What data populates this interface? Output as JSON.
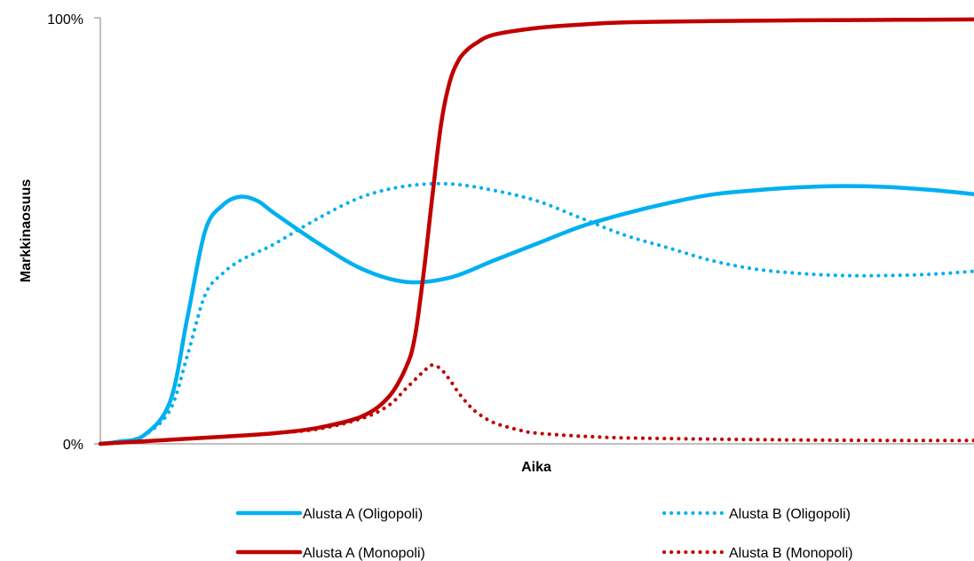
{
  "chart_data": {
    "type": "line",
    "title": "",
    "xlabel": "Aika",
    "ylabel": "Markkinaosuus",
    "ylim": [
      0,
      100
    ],
    "y_ticks": [
      "0%",
      "100%"
    ],
    "grid": false,
    "legend_placement": "bottom",
    "series": [
      {
        "name": "Alusta A (Oligopoli)",
        "color": "#00B0F0",
        "style": "solid",
        "x": [
          0,
          2,
          5,
          8,
          10,
          12,
          14,
          16,
          18,
          20,
          25,
          30,
          35,
          40,
          45,
          50,
          55,
          60,
          65,
          70,
          75,
          80,
          85,
          90,
          95,
          100
        ],
        "values": [
          0,
          0.5,
          2,
          10,
          30,
          50,
          56,
          58,
          57,
          54,
          47,
          41,
          38,
          39,
          43,
          47,
          51,
          54,
          56.5,
          58.5,
          59.5,
          60.2,
          60.5,
          60.3,
          59.6,
          58.6
        ]
      },
      {
        "name": "Alusta B (Oligopoli)",
        "color": "#00B0F0",
        "style": "dotted",
        "x": [
          0,
          2,
          5,
          8,
          10,
          12,
          14,
          16,
          18,
          20,
          25,
          30,
          35,
          40,
          45,
          50,
          55,
          60,
          65,
          70,
          75,
          80,
          85,
          90,
          95,
          100
        ],
        "values": [
          0,
          0.5,
          2,
          8,
          21,
          35,
          40,
          43,
          45,
          47,
          53,
          58,
          60.5,
          61,
          59.5,
          57,
          53,
          49,
          46,
          43,
          41,
          40,
          39.5,
          39.5,
          39.8,
          40.5
        ]
      },
      {
        "name": "Alusta A (Monopoli)",
        "color": "#C00000",
        "style": "solid",
        "x": [
          0,
          5,
          10,
          15,
          20,
          25,
          30,
          33,
          35,
          36,
          37,
          38,
          39,
          40,
          41,
          42,
          43,
          45,
          50,
          55,
          60,
          70,
          80,
          90,
          100
        ],
        "values": [
          0,
          0.6,
          1.2,
          1.8,
          2.5,
          3.8,
          6.5,
          11,
          18,
          25,
          40,
          58,
          75,
          85,
          90,
          92.5,
          94,
          96,
          97.6,
          98.4,
          98.9,
          99.2,
          99.4,
          99.5,
          99.6
        ]
      },
      {
        "name": "Alusta B (Monopoli)",
        "color": "#C00000",
        "style": "dotted",
        "x": [
          0,
          5,
          10,
          15,
          20,
          25,
          30,
          33,
          35,
          37,
          38,
          39,
          40,
          41,
          42,
          43,
          45,
          48,
          50,
          55,
          60,
          70,
          80,
          90,
          100
        ],
        "values": [
          0,
          0.6,
          1.2,
          1.8,
          2.5,
          3.5,
          6,
          9,
          13,
          17,
          18.5,
          17.5,
          15,
          12,
          9.5,
          7.5,
          5,
          3.2,
          2.5,
          1.8,
          1.4,
          1.1,
          0.9,
          0.8,
          0.8
        ]
      }
    ]
  }
}
